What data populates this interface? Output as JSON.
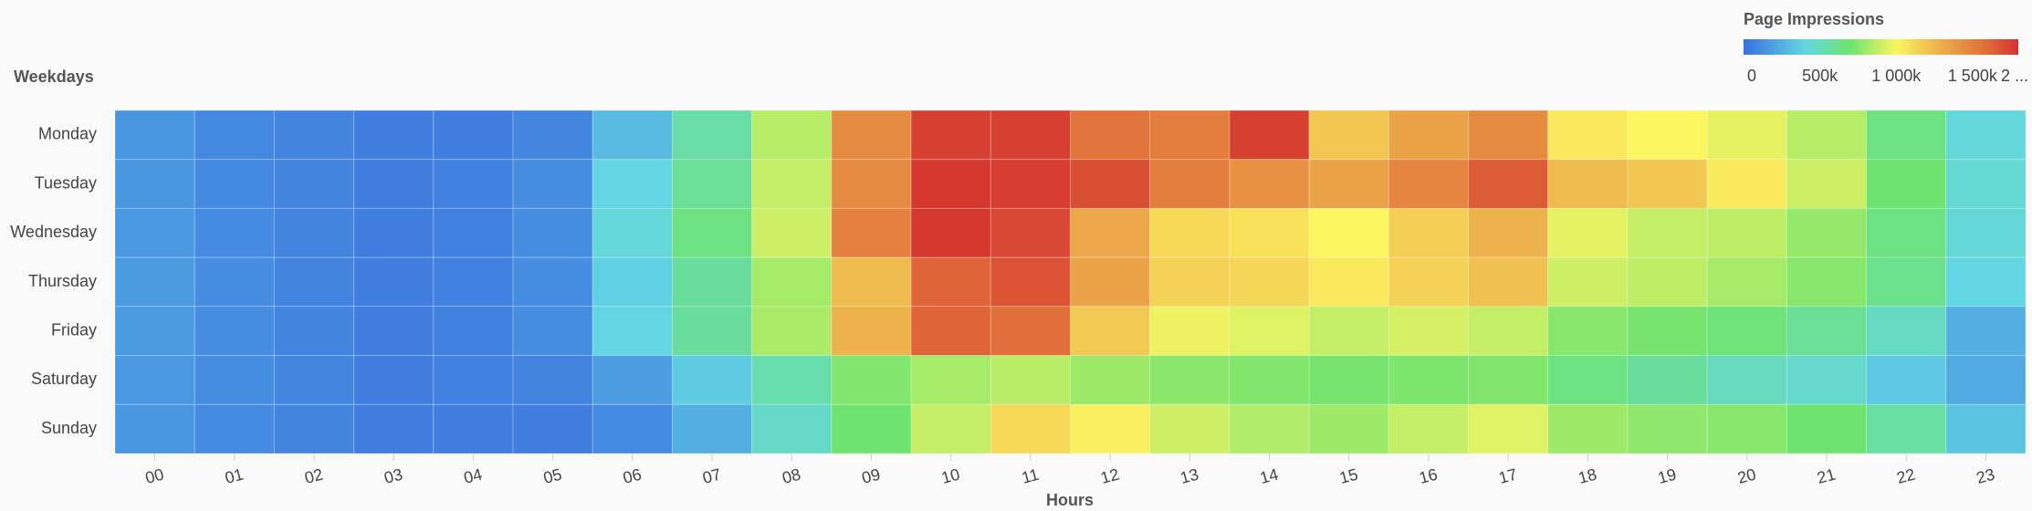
{
  "chart_data": {
    "type": "heatmap",
    "y_label": "Weekdays",
    "x_label": "Hours",
    "legend_title": "Page Impressions",
    "x": [
      "00",
      "01",
      "02",
      "03",
      "04",
      "05",
      "06",
      "07",
      "08",
      "09",
      "10",
      "11",
      "12",
      "13",
      "14",
      "15",
      "16",
      "17",
      "18",
      "19",
      "20",
      "21",
      "22",
      "23"
    ],
    "y": [
      "Monday",
      "Tuesday",
      "Wednesday",
      "Thursday",
      "Friday",
      "Saturday",
      "Sunday"
    ],
    "values": [
      [
        150000,
        100000,
        80000,
        60000,
        60000,
        90000,
        300000,
        550000,
        850000,
        1450000,
        1750000,
        1750000,
        1550000,
        1520000,
        1750000,
        1200000,
        1350000,
        1450000,
        1050000,
        1000000,
        950000,
        850000,
        650000,
        420000
      ],
      [
        150000,
        100000,
        80000,
        60000,
        70000,
        120000,
        400000,
        600000,
        880000,
        1450000,
        1780000,
        1760000,
        1700000,
        1520000,
        1420000,
        1350000,
        1480000,
        1650000,
        1250000,
        1200000,
        1050000,
        900000,
        700000,
        440000
      ],
      [
        160000,
        110000,
        80000,
        60000,
        70000,
        120000,
        420000,
        650000,
        900000,
        1500000,
        1780000,
        1720000,
        1330000,
        1120000,
        1080000,
        1000000,
        1170000,
        1280000,
        950000,
        880000,
        870000,
        780000,
        650000,
        430000
      ],
      [
        170000,
        120000,
        80000,
        60000,
        70000,
        120000,
        380000,
        580000,
        820000,
        1250000,
        1620000,
        1680000,
        1350000,
        1150000,
        1130000,
        1050000,
        1150000,
        1220000,
        900000,
        870000,
        820000,
        750000,
        620000,
        400000
      ],
      [
        170000,
        120000,
        80000,
        60000,
        70000,
        120000,
        400000,
        580000,
        830000,
        1280000,
        1620000,
        1580000,
        1180000,
        970000,
        940000,
        880000,
        920000,
        880000,
        750000,
        720000,
        670000,
        600000,
        480000,
        250000
      ],
      [
        160000,
        120000,
        90000,
        60000,
        70000,
        80000,
        180000,
        360000,
        540000,
        740000,
        820000,
        860000,
        800000,
        760000,
        740000,
        720000,
        730000,
        740000,
        650000,
        580000,
        500000,
        460000,
        350000,
        230000
      ],
      [
        150000,
        110000,
        80000,
        60000,
        60000,
        60000,
        110000,
        250000,
        470000,
        700000,
        880000,
        1120000,
        1020000,
        900000,
        840000,
        800000,
        880000,
        940000,
        800000,
        770000,
        750000,
        700000,
        560000,
        330000
      ]
    ],
    "colorlim": [
      0,
      1800000
    ],
    "colorticks": [
      0,
      {
        "value": 500000,
        "label": "500k"
      },
      {
        "value": 1000000,
        "label": "1 000k"
      },
      {
        "value": 1500000,
        "label": "1 500k"
      },
      {
        "value": 2000000,
        "label": "2 ..."
      }
    ],
    "color_stops": [
      {
        "value": 0,
        "color": "#3a6fe0"
      },
      {
        "value": 400000,
        "color": "#62d6e2"
      },
      {
        "value": 700000,
        "color": "#6ee46e"
      },
      {
        "value": 1000000,
        "color": "#fbf560"
      },
      {
        "value": 1300000,
        "color": "#ecae4a"
      },
      {
        "value": 1600000,
        "color": "#e06a38"
      },
      {
        "value": 1800000,
        "color": "#d3322e"
      }
    ]
  }
}
